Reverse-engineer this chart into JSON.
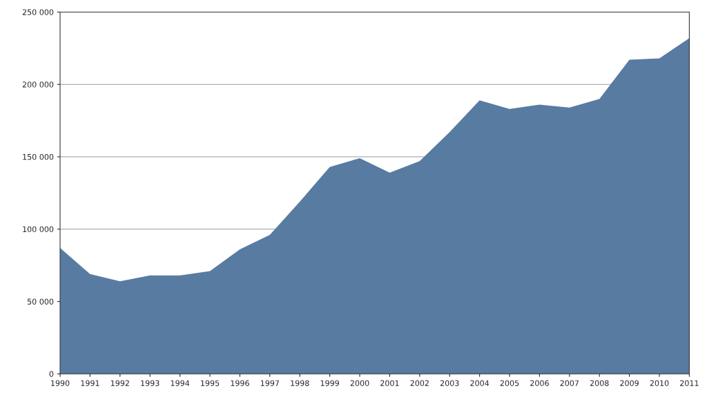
{
  "chart_data": {
    "type": "area",
    "categories": [
      "1990",
      "1991",
      "1992",
      "1993",
      "1994",
      "1995",
      "1996",
      "1997",
      "1998",
      "1999",
      "2000",
      "2001",
      "2002",
      "2003",
      "2004",
      "2005",
      "2006",
      "2007",
      "2008",
      "2009",
      "2010",
      "2011"
    ],
    "values": [
      87000,
      69000,
      64000,
      68000,
      68000,
      71000,
      86000,
      96000,
      119000,
      143000,
      149000,
      139000,
      147000,
      167000,
      189000,
      183000,
      186000,
      184000,
      190000,
      217000,
      218000,
      232000
    ],
    "color": "#587ba2",
    "ylim": [
      0,
      250000
    ],
    "yticks": [
      0,
      {
        "value": 50000,
        "label": "50 000"
      },
      {
        "value": 100000,
        "label": "100 000"
      },
      {
        "value": 150000,
        "label": "150 000"
      },
      {
        "value": 200000,
        "label": "200 000"
      },
      {
        "value": 250000,
        "label": "250 000"
      }
    ],
    "grid": "y"
  }
}
